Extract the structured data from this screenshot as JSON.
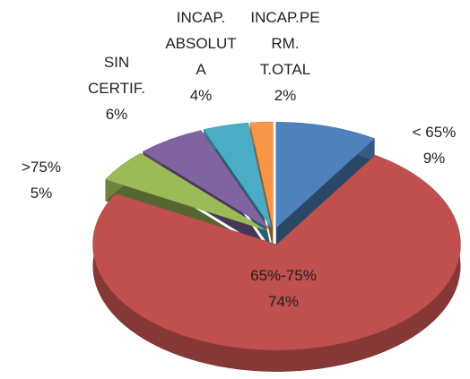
{
  "chart_data": {
    "type": "pie",
    "categories": [
      "< 65%",
      "65%-75%",
      ">75%",
      "SIN CERTIF.",
      "INCAP. ABSOLUTA",
      "INCAP.PERM. T.OTAL"
    ],
    "values": [
      9,
      74,
      5,
      6,
      4,
      2
    ],
    "value_labels": [
      "9%",
      "74%",
      "5%",
      "6%",
      "4%",
      "2%"
    ],
    "colors": [
      "#4f81bd",
      "#c0504d",
      "#9bbb59",
      "#8064a2",
      "#4bacc6",
      "#f79646"
    ]
  }
}
